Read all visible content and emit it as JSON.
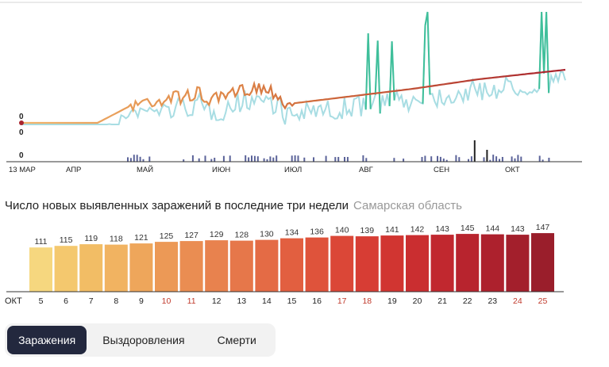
{
  "top_chart": {
    "labels": {
      "line_zero_a": "0",
      "line_zero_b": "0",
      "bar_zero": "0"
    },
    "months": [
      "13 МАР",
      "АПР",
      "МАЙ",
      "ИЮН",
      "ИЮЛ",
      "АВГ",
      "СЕН",
      "ОКТ"
    ],
    "colors": {
      "daily_line": "#a8dde3",
      "trend_start": "#f2b56c",
      "trend_mid": "#d26a3a",
      "trend_end": "#a8242e",
      "spike": "#3fbf9a",
      "mini_bars": "#5b6399",
      "axis": "#333333",
      "start_dot": "#a8242e"
    }
  },
  "chart_data": {
    "type": "bar",
    "title": "Число новых выявленных заражений в последние три недели",
    "region": "Самарская область",
    "month_label": "ОКТ",
    "categories": [
      "5",
      "6",
      "7",
      "8",
      "9",
      "10",
      "11",
      "12",
      "13",
      "14",
      "15",
      "16",
      "17",
      "18",
      "19",
      "20",
      "21",
      "22",
      "23",
      "24",
      "25"
    ],
    "weekend_days": [
      "10",
      "11",
      "17",
      "18",
      "24",
      "25"
    ],
    "values": [
      111,
      115,
      119,
      118,
      121,
      125,
      127,
      129,
      128,
      130,
      134,
      136,
      140,
      139,
      141,
      142,
      143,
      145,
      144,
      143,
      147
    ],
    "bar_colors": [
      "#f6d77f",
      "#f4c86e",
      "#f2bd65",
      "#f1b361",
      "#eea65b",
      "#ec9956",
      "#ea8d52",
      "#e8824e",
      "#e6774a",
      "#e46b45",
      "#e25f40",
      "#df533b",
      "#db4737",
      "#d73d34",
      "#d13531",
      "#ca2e30",
      "#c1282f",
      "#b8242e",
      "#ad212d",
      "#a31f2c",
      "#9a1e2b"
    ],
    "label_color": "#333333",
    "weekend_color": "#c0392b"
  },
  "tabs": [
    {
      "label": "Заражения",
      "active": true
    },
    {
      "label": "Выздоровления",
      "active": false
    },
    {
      "label": "Смерти",
      "active": false
    }
  ]
}
